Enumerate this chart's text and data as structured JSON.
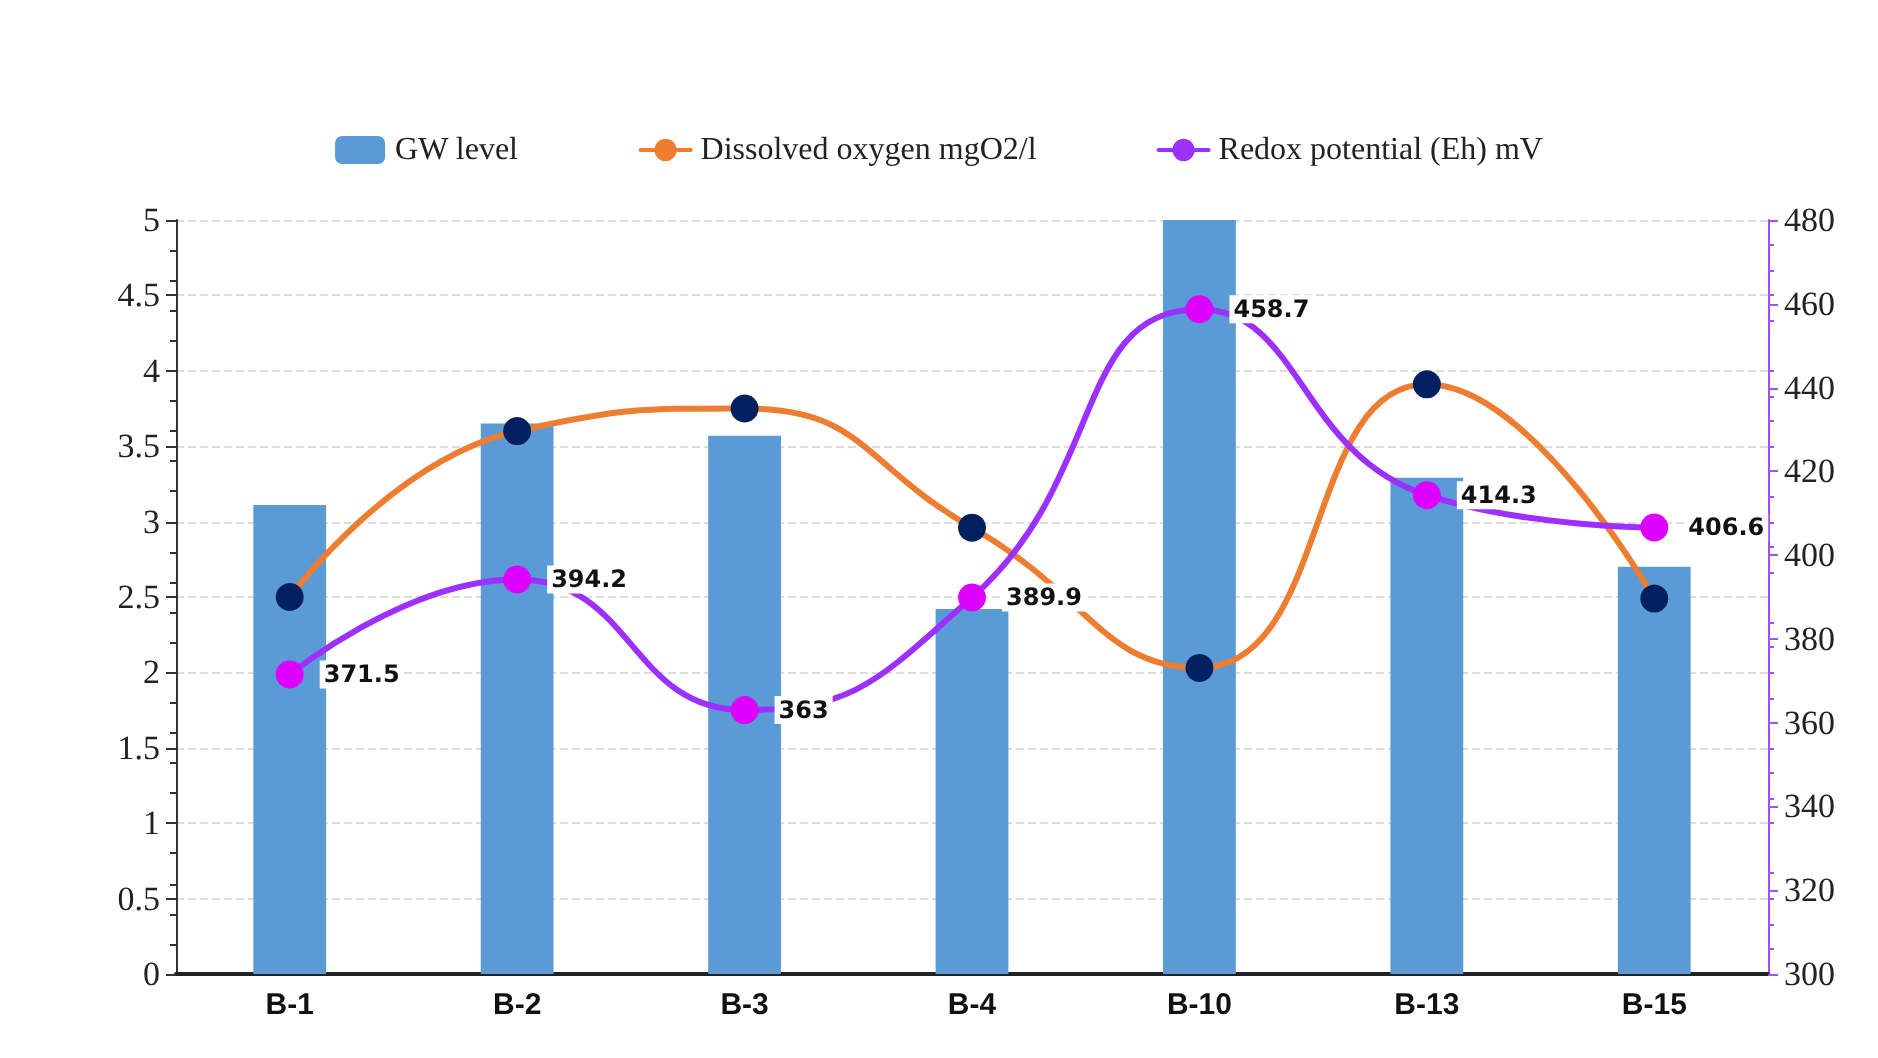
{
  "chart_data": {
    "type": "bar",
    "categories": [
      "B-1",
      "B-2",
      "B-3",
      "B-4",
      "B-10",
      "B-13",
      "B-15"
    ],
    "series": [
      {
        "name": "GW level",
        "color": "#5b9bd5",
        "values": [
          3.11,
          3.65,
          3.57,
          2.42,
          5.0,
          3.29,
          2.7
        ]
      },
      {
        "name": "Dissolved oxygen mgO2/l",
        "type": "line",
        "color": "#ed7d31",
        "colors": [
          "#002060",
          "#002060",
          "#002060",
          "#002060",
          "#002060",
          "#002060",
          "#002060"
        ],
        "values": [
          2.5,
          3.6,
          3.75,
          2.96,
          2.03,
          3.91,
          2.49
        ]
      },
      {
        "name": "Redox potential (Eh) mV",
        "type": "line",
        "axis": "y2",
        "color": "#9b30ff",
        "colors": [
          "#dd00ff",
          "#dd00ff",
          "#dd00ff",
          "#dd00ff",
          "#dd00ff",
          "#dd00ff",
          "#dd00ff"
        ],
        "values": [
          371.5,
          394.2,
          363,
          389.9,
          458.7,
          414.3,
          406.6
        ],
        "value_labels": [
          "371.5",
          "394.2",
          "363",
          "389.9",
          "458.7",
          "414.3",
          "406.6"
        ]
      }
    ],
    "ylim": [
      0,
      5
    ],
    "yticks": [
      0,
      0.5,
      1,
      1.5,
      2,
      2.5,
      3,
      3.5,
      4,
      4.5,
      5
    ],
    "y2lim": [
      300,
      480
    ],
    "y2ticks": [
      300,
      320,
      340,
      360,
      380,
      400,
      420,
      440,
      460,
      480
    ],
    "grid": "y",
    "legend": "top",
    "marker": "circle",
    "line_style": "solid"
  }
}
